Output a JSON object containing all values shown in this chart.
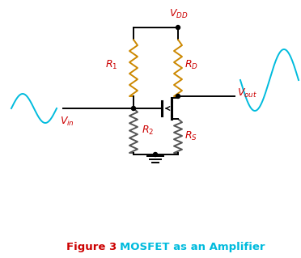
{
  "bg_color": "#ffffff",
  "line_color": "#000000",
  "resistor_color_R1_RD": "#cc8800",
  "resistor_color_R2_RS": "#555555",
  "sine_color": "#00bbdd",
  "red": "#cc0000",
  "cyan": "#00bbdd",
  "figsize": [
    3.72,
    3.19
  ],
  "dpi": 100,
  "fig3_text": "Figure 3",
  "mosfet_text": "MOSFET as an Amplifier"
}
